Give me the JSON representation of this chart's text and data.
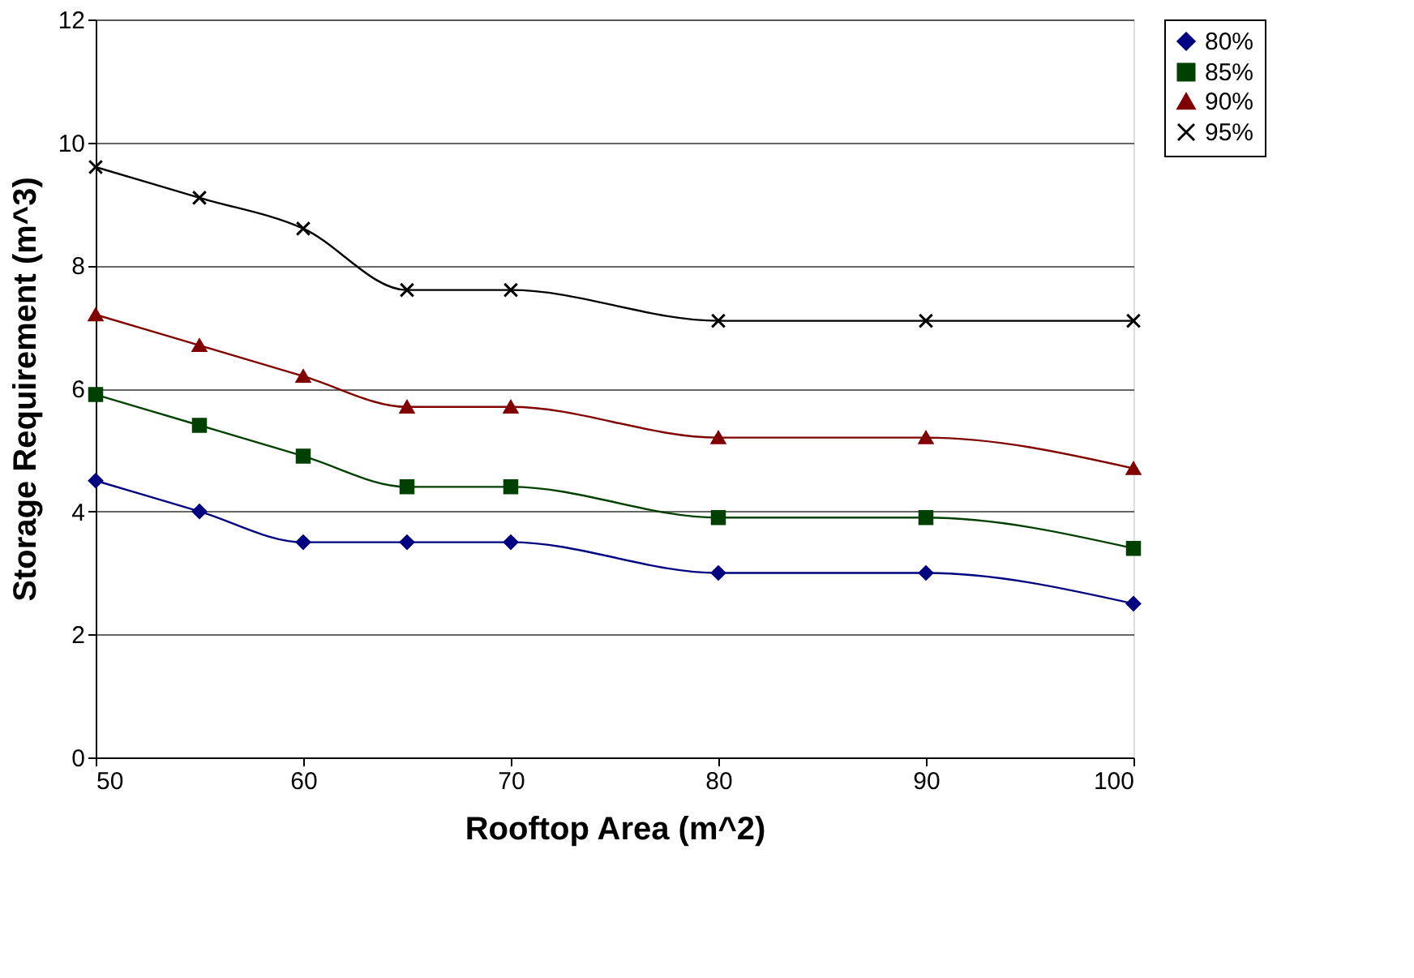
{
  "chart_data": {
    "type": "line",
    "xlabel": "Rooftop Area (m^2)",
    "ylabel": "Storage Requirement (m^3)",
    "x": [
      50,
      55,
      60,
      65,
      70,
      80,
      90,
      100
    ],
    "xlim": [
      50,
      100
    ],
    "xticks": [
      50,
      60,
      70,
      80,
      90,
      100
    ],
    "ylim": [
      0,
      12
    ],
    "yticks": [
      0,
      2,
      4,
      6,
      8,
      10,
      12
    ],
    "grid": "y",
    "legend": "right",
    "line_style": "solid",
    "series": [
      {
        "name": "80%",
        "color": "#000080",
        "marker": "diamond",
        "values": [
          4.5,
          4.0,
          3.5,
          3.5,
          3.5,
          3.0,
          3.0,
          2.5
        ]
      },
      {
        "name": "85%",
        "color": "#004000",
        "marker": "square",
        "values": [
          5.9,
          5.4,
          4.9,
          4.4,
          4.4,
          3.9,
          3.9,
          3.4
        ]
      },
      {
        "name": "90%",
        "color": "#800000",
        "marker": "triangle",
        "values": [
          7.2,
          6.7,
          6.2,
          5.7,
          5.7,
          5.2,
          5.2,
          4.7
        ]
      },
      {
        "name": "95%",
        "color": "#000000",
        "marker": "cross",
        "values": [
          9.6,
          9.1,
          8.6,
          7.6,
          7.6,
          7.1,
          7.1,
          7.1
        ]
      }
    ]
  }
}
